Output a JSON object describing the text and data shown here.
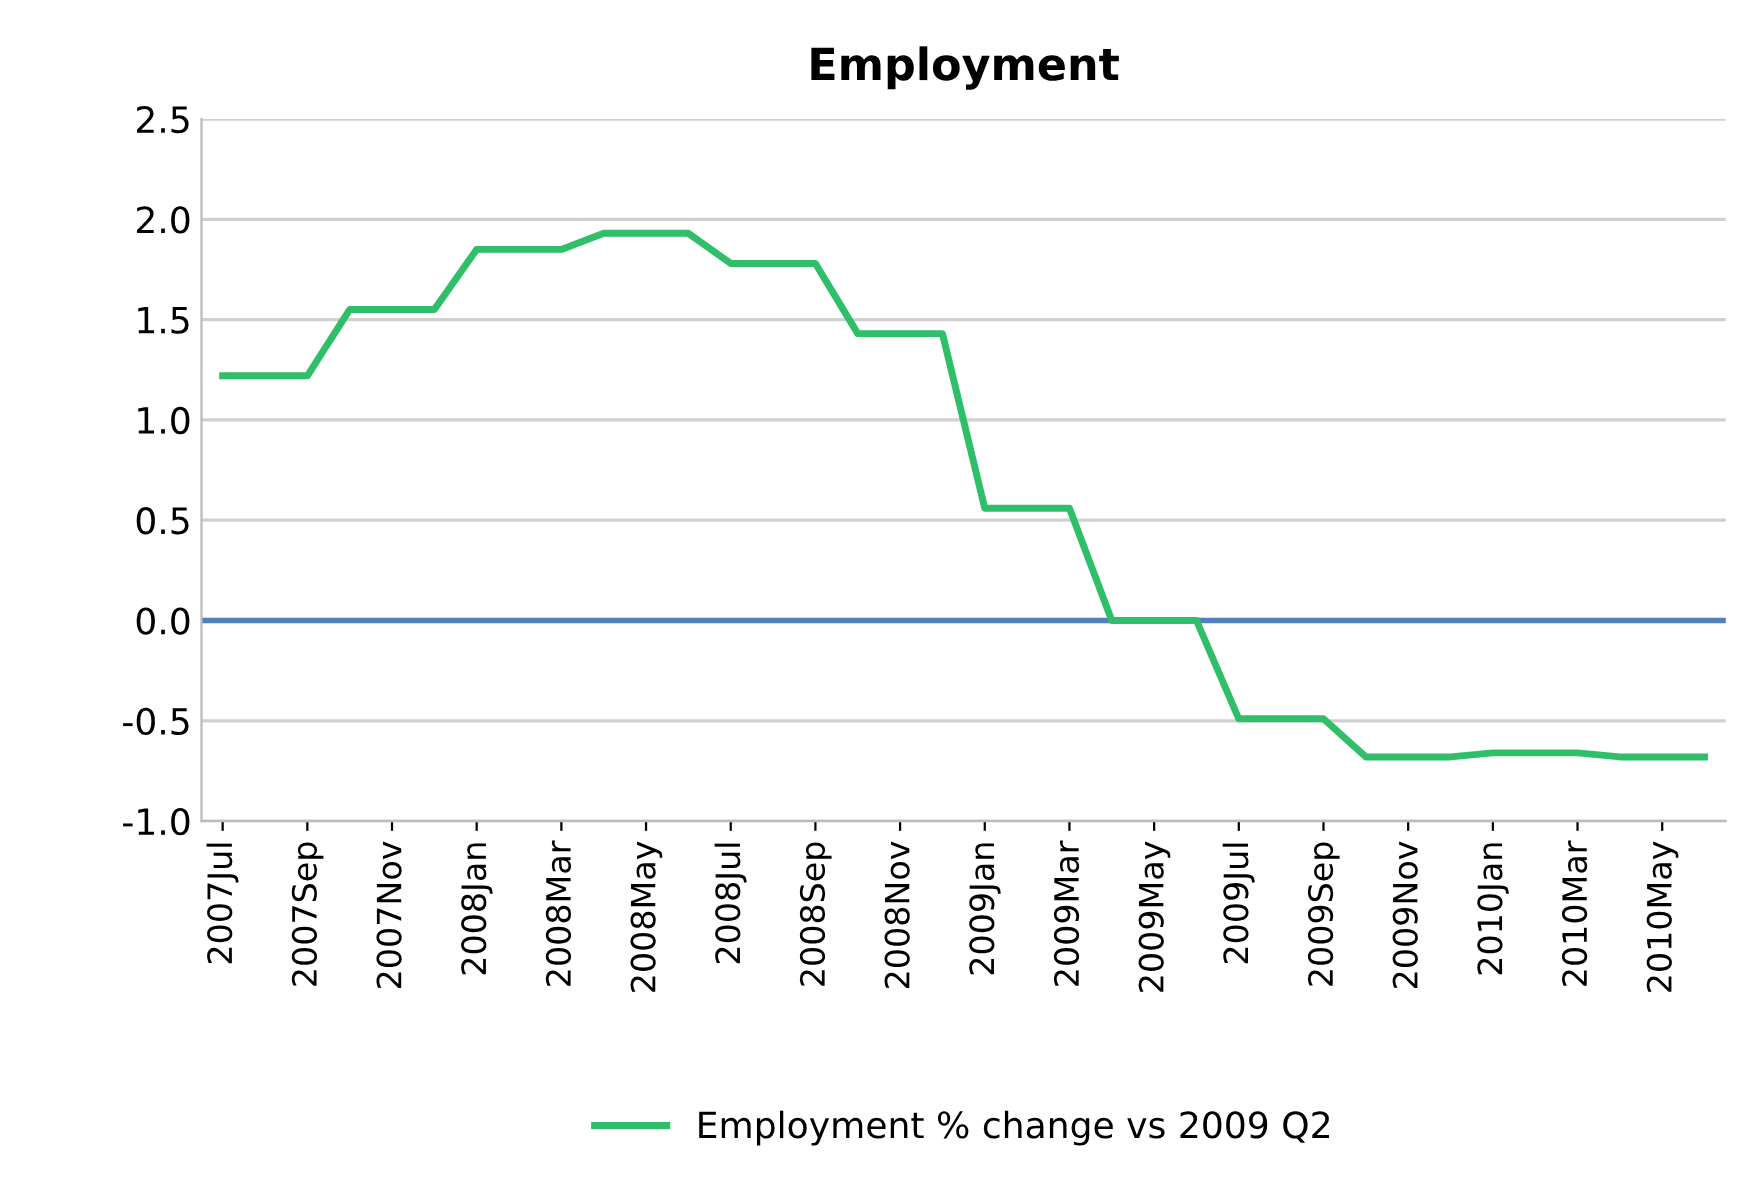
{
  "chart_data": {
    "type": "line",
    "title": "Employment",
    "categories": [
      "2007Jul",
      null,
      "2007Sep",
      null,
      "2007Nov",
      null,
      "2008Jan",
      null,
      "2008Mar",
      null,
      "2008May",
      null,
      "2008Jul",
      null,
      "2008Sep",
      null,
      "2008Nov",
      null,
      "2009Jan",
      null,
      "2009Mar",
      null,
      "2009May",
      null,
      "2009Jul",
      null,
      "2009Sep",
      null,
      "2009Nov",
      null,
      "2010Jan",
      null,
      "2010Mar",
      null,
      "2010May",
      null
    ],
    "series": [
      {
        "name": "Employment % change vs 2009 Q2",
        "color": "#2fbf68",
        "values": [
          1.22,
          1.22,
          1.22,
          1.55,
          1.55,
          1.55,
          1.85,
          1.85,
          1.85,
          1.93,
          1.93,
          1.93,
          1.78,
          1.78,
          1.78,
          1.43,
          1.43,
          1.43,
          0.56,
          0.56,
          0.56,
          0,
          0,
          0,
          -0.49,
          -0.49,
          -0.49,
          -0.68,
          -0.68,
          -0.68,
          -0.66,
          -0.66,
          -0.66,
          -0.68,
          -0.68,
          -0.68
        ]
      }
    ],
    "ref_lines": [
      {
        "axis": "y",
        "value": 0,
        "color": "#4f81bd"
      }
    ],
    "ylim": [
      -1.0,
      2.5
    ],
    "yticks": [
      {
        "value": -1.0,
        "label": "-1.0"
      },
      {
        "value": -0.5,
        "label": "-0.5"
      },
      {
        "value": 0,
        "label": "0.0"
      },
      {
        "value": 0.5,
        "label": "0.5"
      },
      {
        "value": 1.0,
        "label": "1.0"
      },
      {
        "value": 1.5,
        "label": "1.5"
      },
      {
        "value": 2.0,
        "label": "2.0"
      },
      {
        "value": 2.5,
        "label": "2.5"
      }
    ],
    "grid": "y",
    "legend": "bottom",
    "marker": "none",
    "line_style": "solid"
  }
}
